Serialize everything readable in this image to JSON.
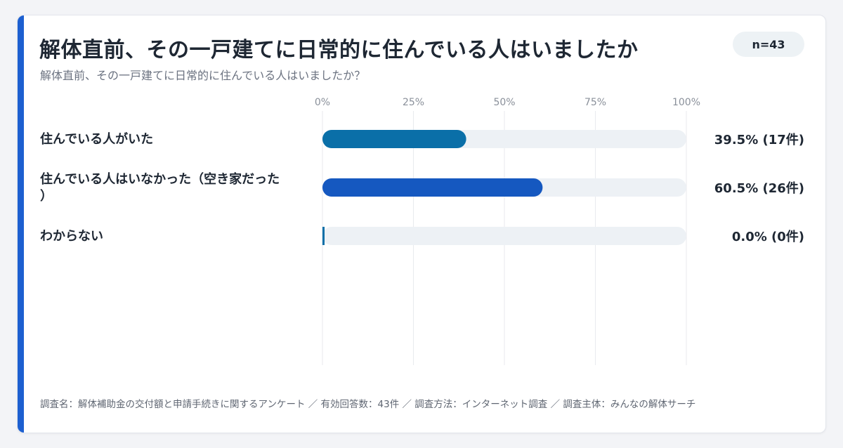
{
  "header": {
    "title": "解体直前、その一戸建てに日常的に住んでいる人はいましたか",
    "badge": "n=43",
    "subtitle": "解体直前、その一戸建てに日常的に住んでいる人はいましたか？"
  },
  "footer": {
    "note": "調査名：解体補助金の交付額と申請手続きに関するアンケート ／ 有効回答数：43件 ／ 調査方法：インターネット調査 ／ 調査主体：みんなの解体サーチ"
  },
  "colors": {
    "accent": "#1c5fd0",
    "track": "#edf1f5",
    "grid": "#e8eaee"
  },
  "chart_data": {
    "type": "bar",
    "orientation": "horizontal",
    "xlim": [
      0,
      100
    ],
    "ticks": [
      "0%",
      "25%",
      "50%",
      "75%",
      "100%"
    ],
    "grid": true,
    "categories": [
      [
        "住んでいる人がいた"
      ],
      [
        "住んでいる人はいなかった（空き家だった",
        "）"
      ],
      [
        "わからない"
      ]
    ],
    "values": [
      39.5,
      60.5,
      0.0
    ],
    "value_labels": [
      "39.5% (17件)",
      "60.5% (26件)",
      "0.0% (0件)"
    ],
    "bar_colors": [
      "#0a6fa8",
      "#1558c0",
      "#0a6fa8"
    ]
  }
}
